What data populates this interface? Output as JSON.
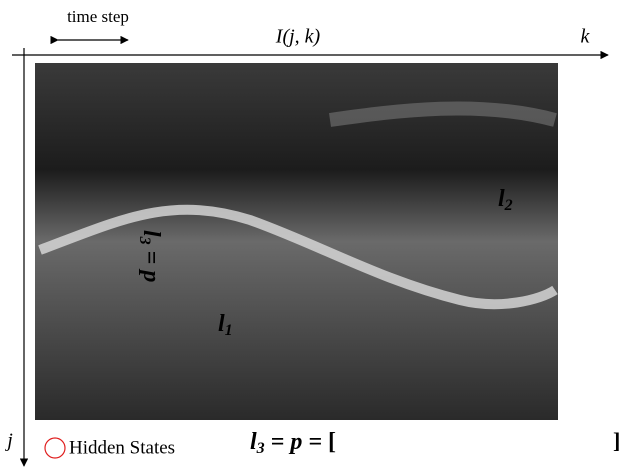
{
  "header": {
    "time_step": "time step",
    "image_label": "I(j, k)",
    "k_axis": "k",
    "j_axis": "j"
  },
  "paths": {
    "l1": {
      "text": "l",
      "sub": "1"
    },
    "l2": {
      "text": "l",
      "sub": "2"
    },
    "l3_rotated": {
      "text": "l",
      "sub": "3",
      "rest": " = p"
    }
  },
  "legend": {
    "hidden_states": "Hidden States",
    "sequence": {
      "text": "l",
      "sub": "3",
      "rest": " = p = ",
      "open": "[",
      "close": "]"
    }
  }
}
